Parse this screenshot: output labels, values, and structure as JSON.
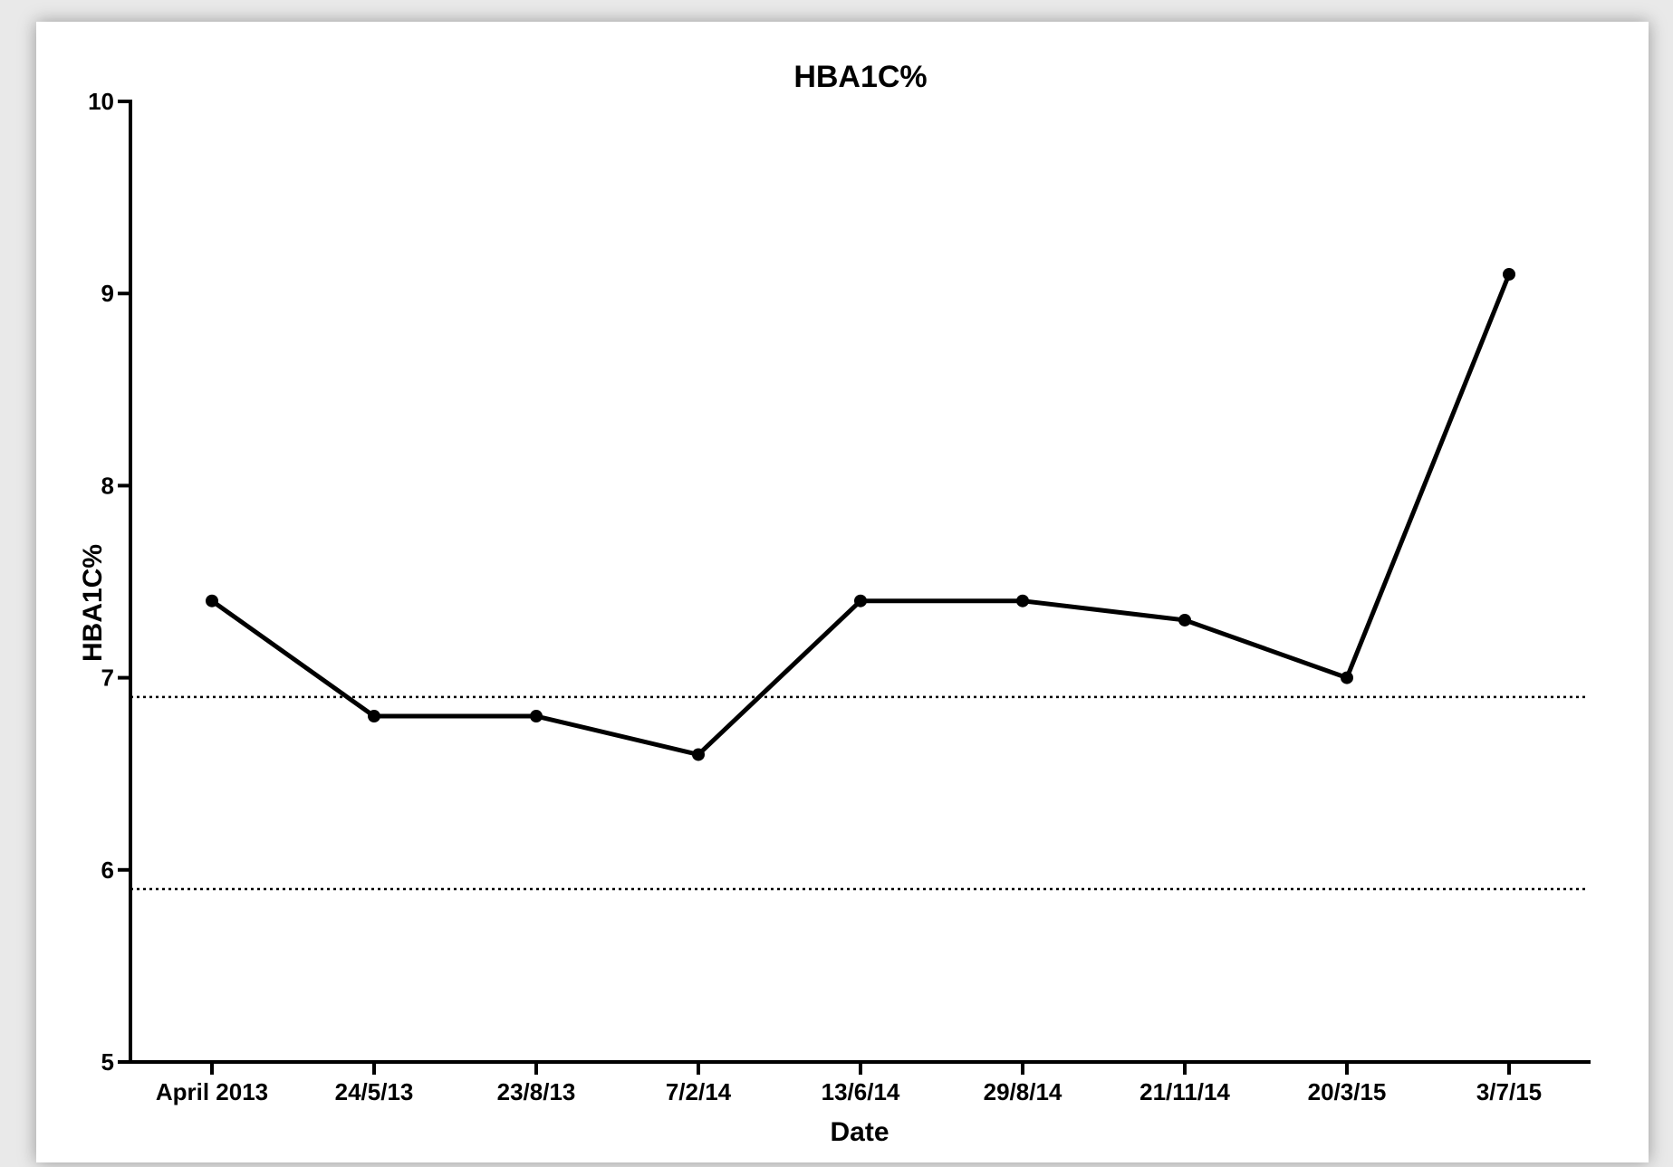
{
  "chart_data": {
    "type": "line",
    "title": "HBA1C%",
    "xlabel": "Date",
    "ylabel": "HBA1C%",
    "categories": [
      "April 2013",
      "24/5/13",
      "23/8/13",
      "7/2/14",
      "13/6/14",
      "29/8/14",
      "21/11/14",
      "20/3/15",
      "3/7/15"
    ],
    "series": [
      {
        "values": [
          7.4,
          6.8,
          6.8,
          6.6,
          7.4,
          7.4,
          7.3,
          7.0,
          9.1
        ]
      }
    ],
    "yticks": [
      "5",
      "6",
      "7",
      "8",
      "9",
      "10"
    ],
    "ylim": [
      5,
      10
    ],
    "reference_lines": [
      6.9,
      5.9
    ],
    "grid": false,
    "legend": "none",
    "colors": {
      "line": "#000000",
      "reference": "#000000",
      "background": "#ffffff"
    }
  }
}
